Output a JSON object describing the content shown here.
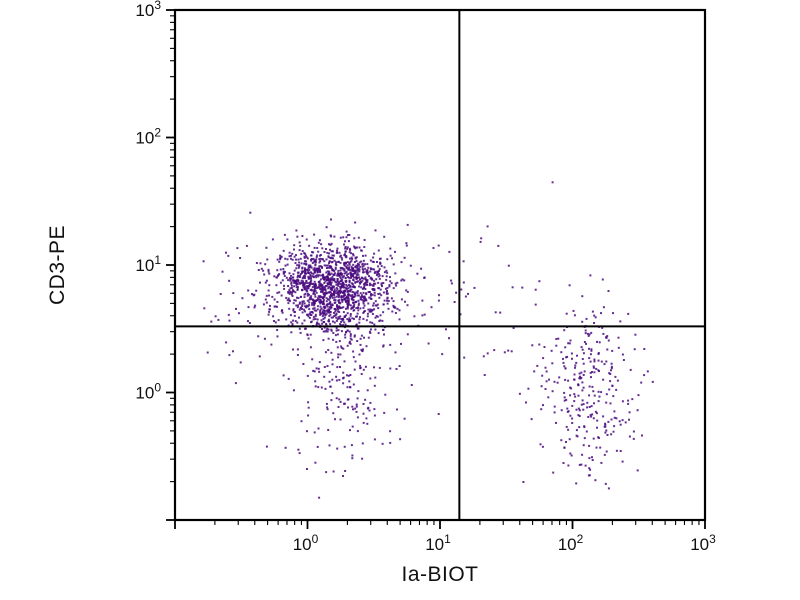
{
  "chart_data": {
    "type": "scatter",
    "title": "",
    "xlabel": "Ia-BIOT",
    "ylabel": "CD3-PE",
    "xscale": "log",
    "yscale": "log",
    "xlim": [
      0.1,
      1000
    ],
    "ylim": [
      0.1,
      1000
    ],
    "x_tick_exponents": [
      0,
      1,
      2,
      3
    ],
    "y_tick_exponents": [
      0,
      1,
      2,
      3
    ],
    "grid": false,
    "legend": "none",
    "colors": {
      "dot": "#4a0b7f",
      "axis": "#000000",
      "background": "#ffffff"
    },
    "quadrant_gate": {
      "x": 14,
      "y": 3.3
    },
    "seed": 1337,
    "clusters": [
      {
        "name": "CD3-positive Ia-negative main population",
        "center_log10": [
          0.2,
          0.82
        ],
        "sd_log10": [
          0.23,
          0.17
        ],
        "count": 1500
      },
      {
        "name": "double-negative tail below gate",
        "center_log10": [
          0.28,
          0.05
        ],
        "sd_log10": [
          0.22,
          0.33
        ],
        "count": 190
      },
      {
        "name": "Ia-positive CD3-negative population",
        "center_log10": [
          2.1,
          0.02
        ],
        "sd_log10": [
          0.2,
          0.32
        ],
        "count": 300
      },
      {
        "name": "sparse mid and upper-right events",
        "center_log10": [
          1.2,
          0.75
        ],
        "sd_log10": [
          0.45,
          0.3
        ],
        "count": 55
      },
      {
        "name": "sparse far-left events",
        "center_log10": [
          -0.5,
          0.72
        ],
        "sd_log10": [
          0.18,
          0.25
        ],
        "count": 45
      }
    ]
  }
}
